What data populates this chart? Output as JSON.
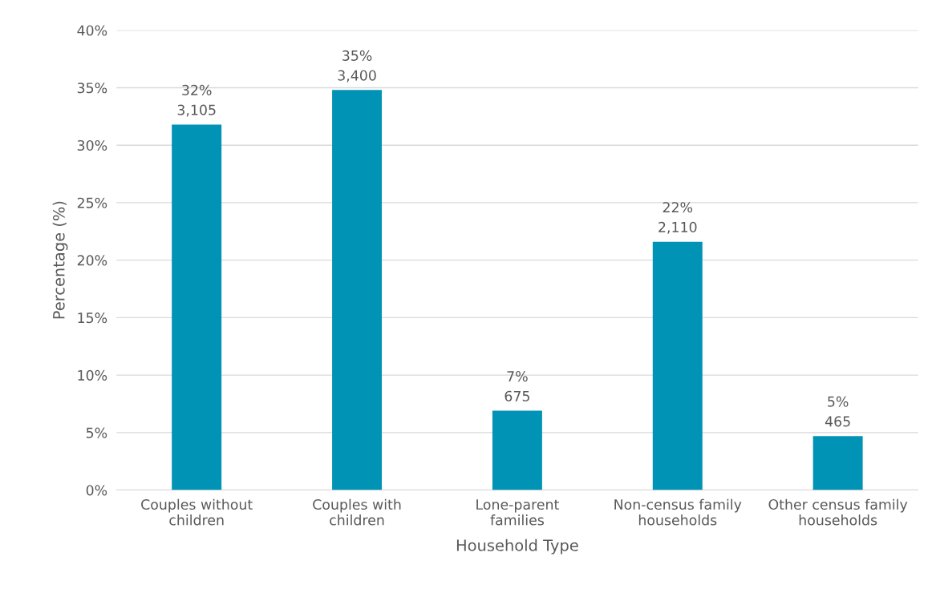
{
  "chart_data": {
    "type": "bar",
    "xlabel": "Household Type",
    "ylabel": "Percentage (%)",
    "categories": [
      "Couples without\nchildren",
      "Couples with\nchildren",
      "Lone-parent\nfamilies",
      "Non-census family\nhouseholds",
      "Other census family\nhouseholds"
    ],
    "values": [
      31.8,
      34.8,
      6.9,
      21.6,
      4.7
    ],
    "value_labels": [
      "32%\n3,105",
      "35%\n3,400",
      "7%\n675",
      "22%\n2,110",
      "5%\n465"
    ],
    "color": "#0093b5",
    "ylim": [
      0,
      40
    ],
    "yticks": [
      {
        "value": 0,
        "label": "0%"
      },
      {
        "value": 5,
        "label": "5%"
      },
      {
        "value": 10,
        "label": "10%"
      },
      {
        "value": 15,
        "label": "15%"
      },
      {
        "value": 20,
        "label": "20%"
      },
      {
        "value": 25,
        "label": "25%"
      },
      {
        "value": 30,
        "label": "30%"
      },
      {
        "value": 35,
        "label": "35%"
      },
      {
        "value": 40,
        "label": "40%"
      }
    ],
    "grid": "y",
    "legend": false
  }
}
